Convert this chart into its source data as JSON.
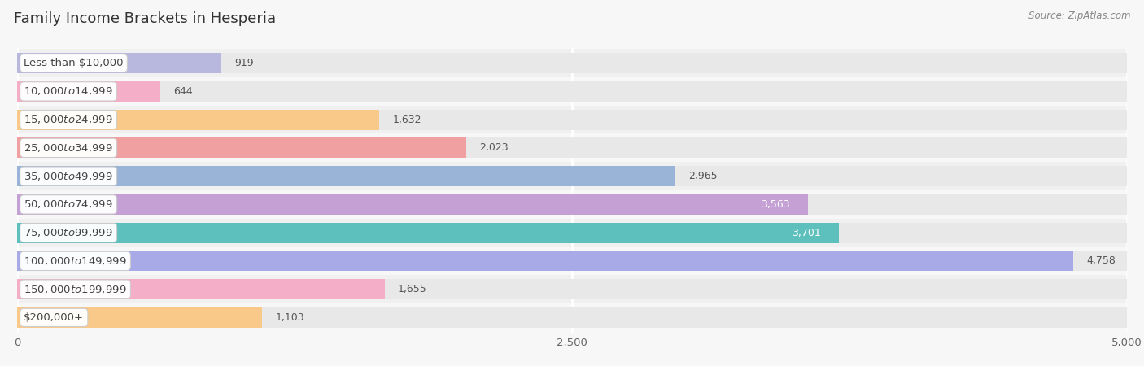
{
  "title": "Family Income Brackets in Hesperia",
  "source": "Source: ZipAtlas.com",
  "categories": [
    "Less than $10,000",
    "$10,000 to $14,999",
    "$15,000 to $24,999",
    "$25,000 to $34,999",
    "$35,000 to $49,999",
    "$50,000 to $74,999",
    "$75,000 to $99,999",
    "$100,000 to $149,999",
    "$150,000 to $199,999",
    "$200,000+"
  ],
  "values": [
    919,
    644,
    1632,
    2023,
    2965,
    3563,
    3701,
    4758,
    1655,
    1103
  ],
  "bar_colors": [
    "#b8b8de",
    "#f5aec8",
    "#f9c98a",
    "#f0a0a0",
    "#9ab4d8",
    "#c4a0d4",
    "#5ec0bc",
    "#a8aae8",
    "#f5aec8",
    "#f9c98a"
  ],
  "xlim": [
    0,
    5000
  ],
  "xticks": [
    0,
    2500,
    5000
  ],
  "background_color": "#f7f7f7",
  "bar_bg_color": "#e8e8e8",
  "row_bg_colors": [
    "#f0f0f0",
    "#f7f7f7"
  ],
  "title_fontsize": 13,
  "label_fontsize": 9.5,
  "value_fontsize": 9,
  "source_fontsize": 8.5
}
